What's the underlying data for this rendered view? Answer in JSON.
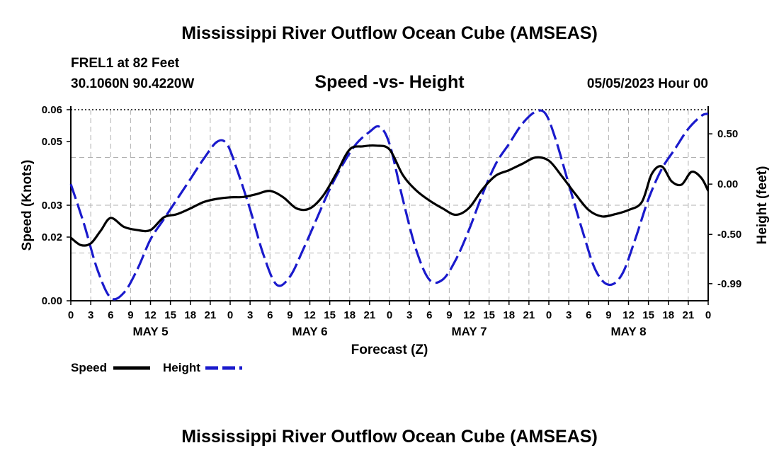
{
  "chart_data": {
    "type": "line",
    "title": "Mississippi River Outflow Ocean Cube (AMSEAS)",
    "subtitle": "Speed -vs- Height",
    "station": "FREL1 at 82 Feet",
    "location": "30.1060N  90.4220W",
    "datetime": "05/05/2023 Hour 00",
    "xlabel": "Forecast (Z)",
    "ylabel_left": "Speed (Knots)",
    "ylabel_right": "Height (feet)",
    "footer_title": "Mississippi River Outflow Ocean Cube (AMSEAS)",
    "x_range_hours": [
      0,
      96
    ],
    "ylim_left": [
      0.0,
      0.06
    ],
    "ylim_right": [
      -1.16,
      0.74
    ],
    "left_ticks": [
      {
        "value": 0.0,
        "label": "0.00"
      },
      {
        "value": 0.02,
        "label": "0.02"
      },
      {
        "value": 0.03,
        "label": "0.03"
      },
      {
        "value": 0.05,
        "label": "0.05"
      },
      {
        "value": 0.06,
        "label": "0.06"
      }
    ],
    "left_grid_values": [
      0.0,
      0.015,
      0.03,
      0.045,
      0.06
    ],
    "right_ticks": [
      {
        "value": 0.5,
        "label": "0.50"
      },
      {
        "value": 0.0,
        "label": "0.00"
      },
      {
        "value": -0.5,
        "label": "-0.50"
      },
      {
        "value": -0.99,
        "label": "-0.99"
      }
    ],
    "x_ticks": [
      {
        "hour": 0,
        "label": "0"
      },
      {
        "hour": 3,
        "label": "3"
      },
      {
        "hour": 6,
        "label": "6"
      },
      {
        "hour": 9,
        "label": "9"
      },
      {
        "hour": 12,
        "label": "12"
      },
      {
        "hour": 15,
        "label": "15"
      },
      {
        "hour": 18,
        "label": "18"
      },
      {
        "hour": 21,
        "label": "21"
      },
      {
        "hour": 24,
        "label": "0"
      },
      {
        "hour": 27,
        "label": "3"
      },
      {
        "hour": 30,
        "label": "6"
      },
      {
        "hour": 33,
        "label": "9"
      },
      {
        "hour": 36,
        "label": "12"
      },
      {
        "hour": 39,
        "label": "15"
      },
      {
        "hour": 42,
        "label": "18"
      },
      {
        "hour": 45,
        "label": "21"
      },
      {
        "hour": 48,
        "label": "0"
      },
      {
        "hour": 51,
        "label": "3"
      },
      {
        "hour": 54,
        "label": "6"
      },
      {
        "hour": 57,
        "label": "9"
      },
      {
        "hour": 60,
        "label": "12"
      },
      {
        "hour": 63,
        "label": "15"
      },
      {
        "hour": 66,
        "label": "18"
      },
      {
        "hour": 69,
        "label": "21"
      },
      {
        "hour": 72,
        "label": "0"
      },
      {
        "hour": 75,
        "label": "3"
      },
      {
        "hour": 78,
        "label": "6"
      },
      {
        "hour": 81,
        "label": "9"
      },
      {
        "hour": 84,
        "label": "12"
      },
      {
        "hour": 87,
        "label": "15"
      },
      {
        "hour": 90,
        "label": "18"
      },
      {
        "hour": 93,
        "label": "21"
      },
      {
        "hour": 96,
        "label": "0"
      }
    ],
    "day_labels": [
      {
        "hour": 12,
        "label": "MAY 5"
      },
      {
        "hour": 36,
        "label": "MAY 6"
      },
      {
        "hour": 60,
        "label": "MAY 7"
      },
      {
        "hour": 84,
        "label": "MAY 8"
      }
    ],
    "series": [
      {
        "name": "Speed",
        "axis": "left",
        "color": "#000000",
        "style": "solid",
        "x": [
          0,
          1.5,
          3,
          4.5,
          6,
          8,
          10,
          12,
          14,
          16,
          18,
          20,
          22,
          24,
          26,
          28,
          30,
          32,
          34,
          36,
          38,
          40,
          42,
          44,
          46,
          48,
          50,
          52,
          54,
          56,
          58,
          60,
          62,
          64,
          66,
          68,
          70,
          72,
          74,
          76,
          78,
          80,
          82,
          84,
          86,
          87.5,
          89,
          90.5,
          92,
          93.5,
          95,
          96
        ],
        "values": [
          0.0198,
          0.0175,
          0.018,
          0.022,
          0.026,
          0.0232,
          0.0222,
          0.0222,
          0.0262,
          0.0272,
          0.029,
          0.031,
          0.032,
          0.0325,
          0.0326,
          0.0335,
          0.0345,
          0.0325,
          0.029,
          0.029,
          0.033,
          0.04,
          0.0475,
          0.0485,
          0.0487,
          0.0475,
          0.0395,
          0.0347,
          0.0315,
          0.029,
          0.027,
          0.0292,
          0.035,
          0.0393,
          0.041,
          0.043,
          0.045,
          0.044,
          0.039,
          0.0335,
          0.0285,
          0.0265,
          0.0272,
          0.0285,
          0.031,
          0.0398,
          0.0422,
          0.0375,
          0.0365,
          0.0405,
          0.0385,
          0.0345
        ]
      },
      {
        "name": "Height",
        "axis": "right",
        "color": "#1a1acc",
        "style": "dashed",
        "x": [
          0,
          2,
          4,
          6,
          8,
          10,
          12,
          14,
          16,
          18,
          20,
          22,
          23.5,
          25,
          27,
          29,
          31,
          33,
          35,
          37,
          39,
          41,
          43,
          45,
          46.5,
          48,
          50,
          52,
          54,
          56,
          58,
          60,
          62,
          64,
          66,
          68,
          70,
          71.5,
          73,
          75,
          77,
          79,
          81,
          83,
          85,
          87,
          89,
          91,
          93,
          95,
          96
        ],
        "values": [
          0.0,
          -0.4,
          -0.85,
          -1.13,
          -1.08,
          -0.85,
          -0.55,
          -0.35,
          -0.15,
          0.05,
          0.25,
          0.42,
          0.4,
          0.15,
          -0.25,
          -0.7,
          -1.0,
          -0.92,
          -0.65,
          -0.35,
          -0.05,
          0.2,
          0.4,
          0.52,
          0.57,
          0.4,
          -0.15,
          -0.65,
          -0.95,
          -0.95,
          -0.75,
          -0.45,
          -0.1,
          0.2,
          0.4,
          0.6,
          0.72,
          0.7,
          0.45,
          0.0,
          -0.45,
          -0.85,
          -1.0,
          -0.9,
          -0.55,
          -0.15,
          0.15,
          0.35,
          0.55,
          0.68,
          0.7
        ]
      }
    ],
    "legend": [
      {
        "label": "Speed",
        "color": "#000000",
        "style": "solid"
      },
      {
        "label": "Height",
        "color": "#1a1acc",
        "style": "dashed"
      }
    ],
    "grid": true,
    "legend_position": "bottom-left"
  }
}
